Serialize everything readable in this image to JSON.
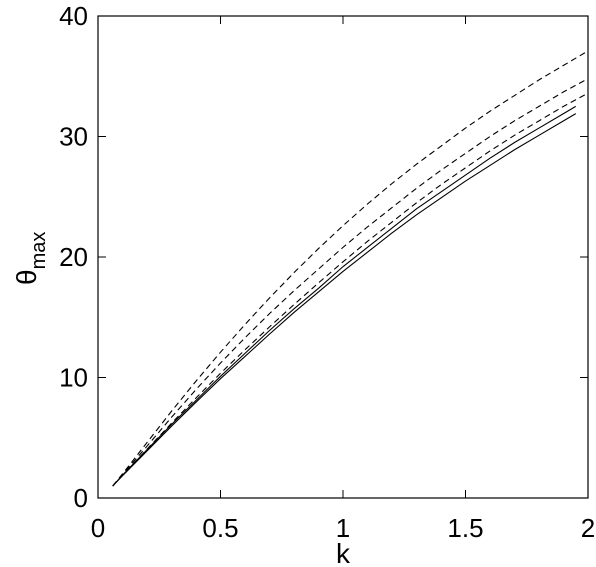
{
  "chart_data": {
    "type": "line",
    "xlabel": "k",
    "ylabel": "θ",
    "ylabel_subscript": "max",
    "xlim": [
      0,
      2
    ],
    "ylim": [
      0,
      40
    ],
    "xticks": [
      "0",
      "0.5",
      "1",
      "1.5",
      "2"
    ],
    "yticks": [
      "0",
      "10",
      "20",
      "30",
      "40"
    ],
    "grid": false,
    "series": [
      {
        "style": "solid",
        "x": [
          0.06,
          0.1,
          0.2,
          0.3,
          0.4,
          0.5,
          0.6,
          0.7,
          0.8,
          0.9,
          1.0,
          1.1,
          1.2,
          1.3,
          1.4,
          1.5,
          1.6,
          1.7,
          1.8,
          1.9,
          1.95
        ],
        "y": [
          1.0,
          1.9,
          4.0,
          6.1,
          8.1,
          10.1,
          12.0,
          13.9,
          15.7,
          17.4,
          19.2,
          20.8,
          22.4,
          24.0,
          25.4,
          26.8,
          28.2,
          29.5,
          30.7,
          31.9,
          32.5
        ]
      },
      {
        "style": "solid",
        "x": [
          0.06,
          0.1,
          0.2,
          0.3,
          0.4,
          0.5,
          0.6,
          0.7,
          0.8,
          0.9,
          1.0,
          1.1,
          1.2,
          1.3,
          1.4,
          1.5,
          1.6,
          1.7,
          1.8,
          1.9,
          1.95
        ],
        "y": [
          1.0,
          1.85,
          3.9,
          5.95,
          7.95,
          9.9,
          11.75,
          13.6,
          15.4,
          17.1,
          18.8,
          20.4,
          22.0,
          23.5,
          24.9,
          26.3,
          27.6,
          28.9,
          30.1,
          31.3,
          31.9
        ]
      },
      {
        "style": "dashed",
        "x": [
          0.06,
          0.1,
          0.2,
          0.3,
          0.4,
          0.5,
          0.6,
          0.7,
          0.8,
          0.9,
          1.0,
          1.1,
          1.2,
          1.3,
          1.4,
          1.5,
          1.6,
          1.7,
          1.8,
          1.9,
          2.0
        ],
        "y": [
          1.0,
          2.0,
          4.6,
          7.2,
          9.7,
          12.1,
          14.4,
          16.6,
          18.7,
          20.7,
          22.6,
          24.4,
          26.1,
          27.7,
          29.2,
          30.7,
          32.1,
          33.4,
          34.7,
          35.9,
          37.1
        ]
      },
      {
        "style": "dashed",
        "x": [
          0.06,
          0.1,
          0.2,
          0.3,
          0.4,
          0.5,
          0.6,
          0.7,
          0.8,
          0.9,
          1.0,
          1.1,
          1.2,
          1.3,
          1.4,
          1.5,
          1.6,
          1.7,
          1.8,
          1.9,
          2.0
        ],
        "y": [
          1.0,
          1.95,
          4.3,
          6.7,
          9.0,
          11.2,
          13.3,
          15.3,
          17.2,
          19.0,
          20.8,
          22.5,
          24.1,
          25.7,
          27.2,
          28.6,
          30.0,
          31.3,
          32.5,
          33.7,
          34.8
        ]
      },
      {
        "style": "dashed",
        "x": [
          0.06,
          0.1,
          0.2,
          0.3,
          0.4,
          0.5,
          0.6,
          0.7,
          0.8,
          0.9,
          1.0,
          1.1,
          1.2,
          1.3,
          1.4,
          1.5,
          1.6,
          1.7,
          1.8,
          1.9,
          2.0
        ],
        "y": [
          1.0,
          1.9,
          4.05,
          6.2,
          8.3,
          10.35,
          12.3,
          14.2,
          16.05,
          17.85,
          19.6,
          21.3,
          22.9,
          24.5,
          26.0,
          27.4,
          28.8,
          30.1,
          31.3,
          32.5,
          33.6
        ]
      }
    ]
  }
}
